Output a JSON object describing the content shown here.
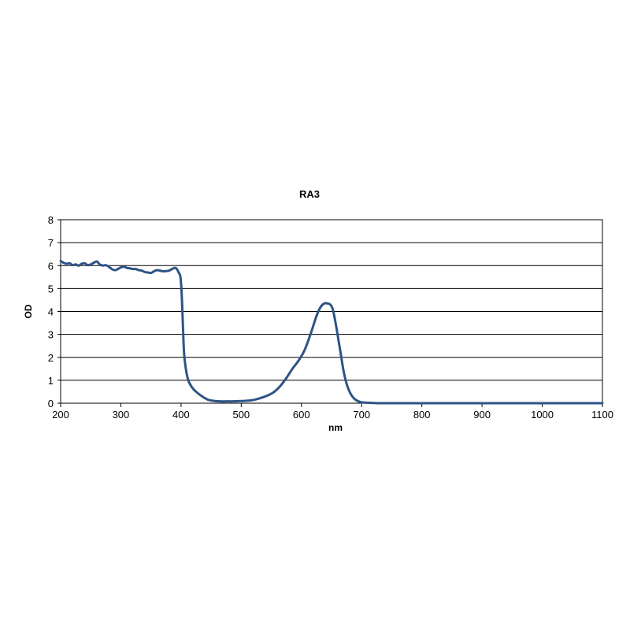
{
  "chart_data": {
    "type": "line",
    "title": "RA3",
    "xlabel": "nm",
    "ylabel": "OD",
    "xlim": [
      200,
      1100
    ],
    "ylim": [
      0,
      8
    ],
    "xticks": [
      200,
      300,
      400,
      500,
      600,
      700,
      800,
      900,
      1000,
      1100
    ],
    "yticks": [
      0,
      1,
      2,
      3,
      4,
      5,
      6,
      7,
      8
    ],
    "grid": "horizontal",
    "line_color": "#2e5486",
    "series": [
      {
        "name": "",
        "x": [
          200,
          205,
          210,
          215,
          220,
          225,
          230,
          235,
          240,
          245,
          250,
          255,
          260,
          265,
          270,
          275,
          280,
          285,
          290,
          295,
          300,
          305,
          310,
          315,
          320,
          325,
          330,
          335,
          340,
          345,
          350,
          355,
          360,
          365,
          370,
          375,
          380,
          385,
          390,
          393,
          396,
          399,
          401,
          403,
          405,
          408,
          412,
          418,
          425,
          435,
          445,
          455,
          465,
          475,
          485,
          495,
          505,
          515,
          525,
          535,
          545,
          555,
          565,
          575,
          585,
          595,
          605,
          615,
          625,
          632,
          638,
          643,
          648,
          652,
          656,
          660,
          665,
          670,
          675,
          680,
          685,
          690,
          695,
          700,
          710,
          720,
          730,
          740,
          760,
          800,
          900,
          1000,
          1100
        ],
        "y": [
          6.2,
          6.12,
          6.08,
          6.1,
          6.02,
          6.05,
          6.0,
          6.08,
          6.1,
          6.02,
          6.05,
          6.12,
          6.18,
          6.05,
          6.0,
          6.02,
          5.95,
          5.85,
          5.8,
          5.85,
          5.92,
          5.95,
          5.9,
          5.88,
          5.85,
          5.85,
          5.8,
          5.78,
          5.72,
          5.7,
          5.68,
          5.75,
          5.8,
          5.78,
          5.75,
          5.76,
          5.78,
          5.85,
          5.9,
          5.85,
          5.7,
          5.5,
          4.8,
          3.5,
          2.2,
          1.5,
          1.0,
          0.7,
          0.5,
          0.3,
          0.15,
          0.1,
          0.08,
          0.08,
          0.08,
          0.09,
          0.1,
          0.12,
          0.17,
          0.25,
          0.35,
          0.5,
          0.75,
          1.1,
          1.5,
          1.85,
          2.3,
          3.0,
          3.8,
          4.2,
          4.35,
          4.35,
          4.3,
          4.1,
          3.6,
          3.0,
          2.2,
          1.4,
          0.85,
          0.5,
          0.28,
          0.15,
          0.08,
          0.04,
          0.02,
          0.01,
          0.0,
          0.0,
          0.0,
          0.0,
          0.0,
          0.0,
          0.0
        ]
      }
    ]
  }
}
